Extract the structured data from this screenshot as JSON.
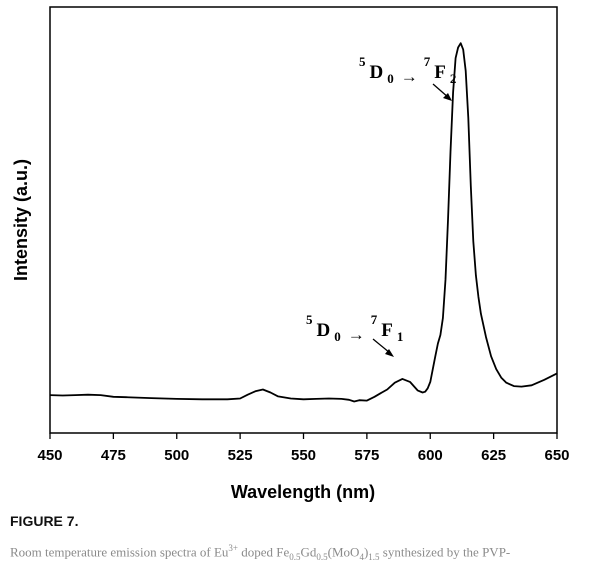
{
  "chart_data": {
    "type": "line",
    "xlabel": "Wavelength (nm)",
    "ylabel": "Intensity (a.u.)",
    "xlim": [
      450,
      650
    ],
    "ylim": [
      0,
      100
    ],
    "xticks": [
      450,
      475,
      500,
      525,
      550,
      575,
      600,
      625,
      650
    ],
    "grid": false,
    "legend": "none",
    "line_color": "#000000",
    "series": [
      {
        "x": [
          450,
          455,
          460,
          465,
          470,
          475,
          480,
          490,
          500,
          510,
          520,
          525,
          528,
          531,
          534,
          537,
          540,
          545,
          550,
          555,
          560,
          565,
          568,
          570,
          572,
          575,
          578,
          580,
          583,
          586,
          589,
          592,
          595,
          597,
          598,
          599,
          600,
          601,
          602,
          603,
          604,
          605,
          606,
          607,
          608,
          609,
          610,
          611,
          612,
          613,
          614,
          615,
          616,
          617,
          618,
          619,
          620,
          622,
          624,
          626,
          628,
          630,
          633,
          636,
          640,
          645,
          650
        ],
        "values": [
          8.9,
          8.8,
          8.9,
          9.0,
          8.9,
          8.5,
          8.4,
          8.2,
          8.0,
          7.9,
          7.9,
          8.1,
          9.0,
          9.8,
          10.2,
          9.5,
          8.6,
          8.1,
          7.9,
          8.0,
          8.1,
          8.0,
          7.8,
          7.4,
          7.7,
          7.6,
          8.5,
          9.2,
          10.2,
          11.8,
          12.7,
          12.0,
          10.0,
          9.5,
          9.7,
          10.5,
          12.0,
          15.0,
          18.0,
          21.0,
          23.0,
          27.0,
          36.0,
          50.0,
          66.0,
          80.0,
          88.0,
          90.5,
          91.5,
          90.0,
          85.0,
          74.0,
          58.0,
          45.0,
          37.0,
          32.0,
          28.0,
          22.5,
          18.0,
          15.0,
          13.0,
          11.8,
          11.0,
          10.9,
          11.2,
          12.5,
          14.0
        ]
      }
    ],
    "annotations": [
      {
        "lower": "5",
        "main": "D",
        "sub": "0",
        "arrow": "→",
        "lower2": "7",
        "main2": "F",
        "sub2": "2"
      },
      {
        "lower": "5",
        "main": "D",
        "sub": "0",
        "arrow": "→",
        "lower2": "7",
        "main2": "F",
        "sub2": "1"
      }
    ]
  },
  "figure": {
    "label": "FIGURE 7.",
    "caption_parts": {
      "a": "Room temperature emission spectra of Eu",
      "b": "3+",
      "c": " doped Fe",
      "d": "0.5",
      "e": "Gd",
      "f": "0.5",
      "g": "(MoO",
      "h": "4",
      "i": ")",
      "j": "1.5",
      "k": " synthesized by the PVP-"
    }
  }
}
